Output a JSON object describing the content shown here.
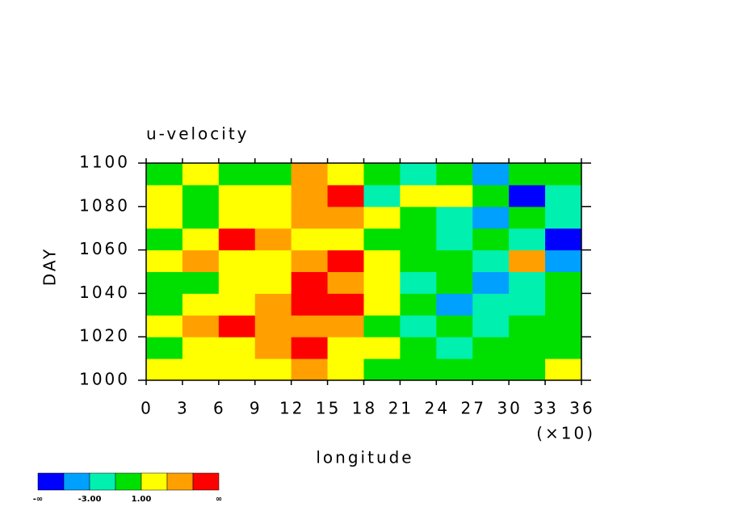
{
  "chart_data": {
    "type": "heatmap",
    "title": "u-velocity",
    "x_label": "longitude",
    "x_multiplier_label": "(×10)",
    "y_label": "DAY",
    "x": [
      1.5,
      4.5,
      7.5,
      10.5,
      13.5,
      16.5,
      19.5,
      22.5,
      25.5,
      28.5,
      31.5,
      34.5
    ],
    "y": [
      1005,
      1015,
      1025,
      1035,
      1045,
      1055,
      1065,
      1075,
      1085,
      1095
    ],
    "z": [
      [
        1,
        2,
        1,
        2,
        3,
        2,
        0,
        -1,
        0,
        -1,
        0,
        1
      ],
      [
        0,
        1,
        2,
        4,
        5,
        2,
        1,
        -1,
        -2,
        -1,
        0,
        0
      ],
      [
        1,
        3,
        5,
        4,
        3,
        4,
        0,
        -2,
        -1,
        -2,
        -1,
        0
      ],
      [
        0,
        1,
        2,
        3,
        5,
        5,
        2,
        -1,
        -4,
        -2,
        -3,
        -1
      ],
      [
        -1,
        0,
        1,
        2,
        5,
        4,
        1,
        -2,
        -1,
        -4,
        -2,
        -1
      ],
      [
        1,
        4,
        2,
        1,
        3,
        5,
        2,
        0,
        -1,
        -2,
        3,
        -4
      ],
      [
        0,
        2,
        5,
        3,
        1,
        2,
        0,
        -1,
        -3,
        -1,
        -2,
        -6
      ],
      [
        1,
        0,
        1,
        2,
        3,
        4,
        1,
        -1,
        -2,
        -4,
        -1,
        -2
      ],
      [
        2,
        0,
        1,
        1,
        3,
        5,
        -2,
        1,
        2,
        -1,
        -6,
        -2
      ],
      [
        0,
        1,
        -1,
        0,
        4,
        1,
        -1,
        -2,
        -1,
        -4,
        -1,
        0
      ]
    ],
    "xlim": [
      0,
      36
    ],
    "xticks": [
      0,
      3,
      6,
      9,
      12,
      15,
      18,
      21,
      24,
      27,
      30,
      33,
      36
    ],
    "ylim": [
      1000,
      1100
    ],
    "yticks": [
      1000,
      1020,
      1040,
      1060,
      1080,
      1100
    ],
    "colorbar": {
      "colors": [
        "#0000ff",
        "#00a0ff",
        "#00f0b0",
        "#00e000",
        "#ffff00",
        "#ffa000",
        "#ff0000"
      ],
      "levels": [
        -5,
        -3,
        -1,
        1,
        3,
        5
      ],
      "labels": [
        "-∞",
        null,
        "-3.00",
        null,
        "1.00",
        null,
        null,
        "∞"
      ]
    }
  }
}
